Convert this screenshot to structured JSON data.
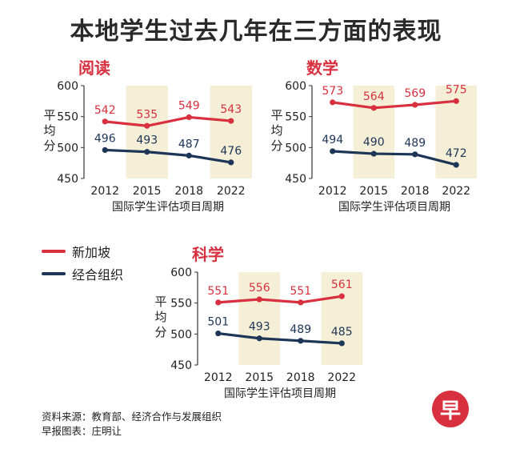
{
  "title": "本地学生过去几年在三方面的表现",
  "colors": {
    "singapore": "#d8303e",
    "oecd": "#1d3557",
    "highlight": "#f4efd6"
  },
  "legend": {
    "singapore": "新加坡",
    "oecd": "经合组织"
  },
  "source": {
    "line1": "资料来源：教育部、经济合作与发展组织",
    "line2": "早报图表：庄明让"
  },
  "logo_text": "早",
  "chart_data": [
    {
      "type": "line",
      "title": "阅读",
      "xlabel": "国际学生评估项目周期",
      "ylabel": "平均分",
      "categories": [
        "2012",
        "2015",
        "2018",
        "2022"
      ],
      "ylim": [
        450,
        600
      ],
      "yticks": [
        450,
        500,
        550,
        600
      ],
      "highlighted_categories": [
        "2015",
        "2022"
      ],
      "series": [
        {
          "name": "新加坡",
          "values": [
            542,
            535,
            549,
            543
          ]
        },
        {
          "name": "经合组织",
          "values": [
            496,
            493,
            487,
            476
          ]
        }
      ]
    },
    {
      "type": "line",
      "title": "数学",
      "xlabel": "国际学生评估项目周期",
      "ylabel": "平均分",
      "categories": [
        "2012",
        "2015",
        "2018",
        "2022"
      ],
      "ylim": [
        450,
        600
      ],
      "yticks": [
        450,
        500,
        550,
        600
      ],
      "highlighted_categories": [
        "2015",
        "2022"
      ],
      "series": [
        {
          "name": "新加坡",
          "values": [
            573,
            564,
            569,
            575
          ]
        },
        {
          "name": "经合组织",
          "values": [
            494,
            490,
            489,
            472
          ]
        }
      ]
    },
    {
      "type": "line",
      "title": "科学",
      "xlabel": "国际学生评估项目周期",
      "ylabel": "平均分",
      "categories": [
        "2012",
        "2015",
        "2018",
        "2022"
      ],
      "ylim": [
        450,
        600
      ],
      "yticks": [
        450,
        500,
        550,
        600
      ],
      "highlighted_categories": [
        "2015",
        "2022"
      ],
      "series": [
        {
          "name": "新加坡",
          "values": [
            551,
            556,
            551,
            561
          ]
        },
        {
          "name": "经合组织",
          "values": [
            501,
            493,
            489,
            485
          ]
        }
      ]
    }
  ]
}
